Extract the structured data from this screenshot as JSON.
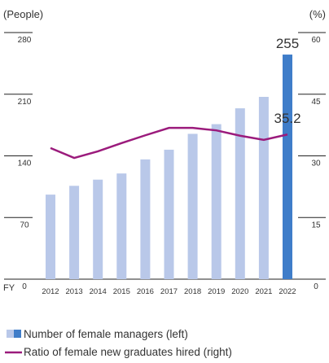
{
  "chart_data": {
    "type": "bar-line",
    "y_label": "(People)",
    "y2_label": "(%)",
    "x_label": "FY",
    "categories": [
      "2012",
      "2013",
      "2014",
      "2015",
      "2016",
      "2017",
      "2018",
      "2019",
      "2020",
      "2021",
      "2022"
    ],
    "series": [
      {
        "name": "Number of female managers (left)",
        "type": "bar",
        "axis": "y",
        "colors": [
          "#b9c8e9",
          "#b9c8e9",
          "#b9c8e9",
          "#b9c8e9",
          "#b9c8e9",
          "#b9c8e9",
          "#b9c8e9",
          "#b9c8e9",
          "#b9c8e9",
          "#b9c8e9",
          "#3f7dc9"
        ],
        "values": [
          96,
          106,
          113,
          120,
          136,
          147,
          165,
          176,
          194,
          207,
          255
        ]
      },
      {
        "name": "Ratio of female new graduates hired (right)",
        "type": "line",
        "axis": "y2",
        "color": "#9b1b7c",
        "values": [
          31.9,
          29.5,
          31.1,
          33.1,
          35.0,
          36.8,
          36.8,
          36.2,
          34.9,
          33.9,
          35.2
        ]
      }
    ],
    "ylim": [
      0,
      280
    ],
    "yticks": [
      0,
      70,
      140,
      210,
      280
    ],
    "y2lim": [
      0,
      60
    ],
    "y2ticks": [
      0,
      15,
      30,
      45,
      60
    ]
  }
}
